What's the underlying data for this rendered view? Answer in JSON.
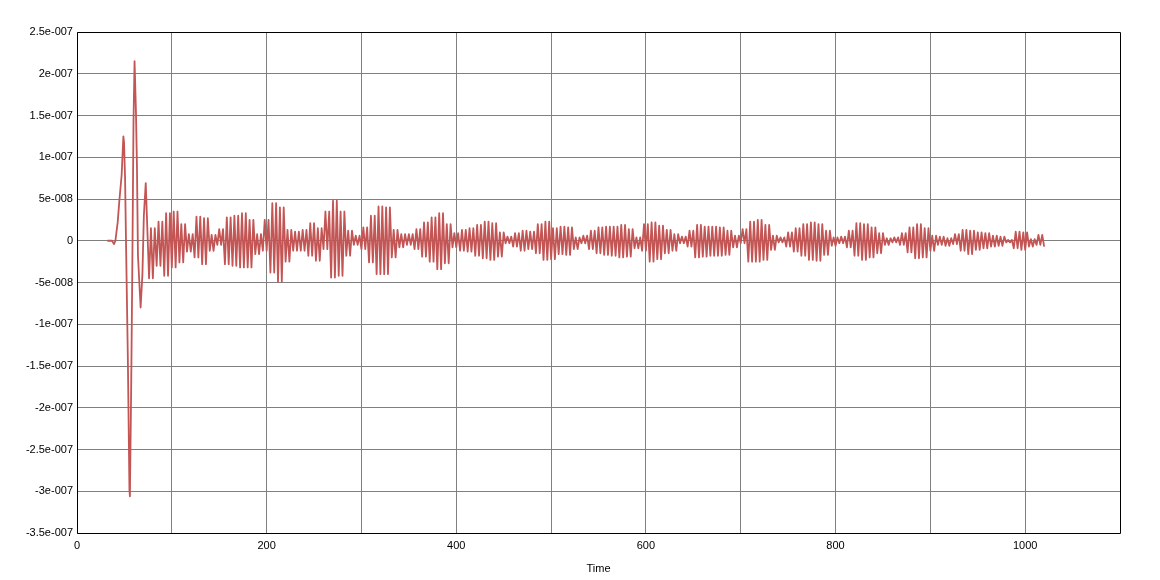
{
  "chart_data": {
    "type": "line",
    "xlabel": "Time",
    "color": "#c45555",
    "xlim": [
      0,
      1100
    ],
    "ylim": [
      -3.5e-07,
      2.5e-07
    ],
    "xticks": [
      0,
      {
        "value": 100,
        "label": null
      },
      200,
      {
        "value": 300,
        "label": null
      },
      400,
      {
        "value": 500,
        "label": null
      },
      600,
      {
        "value": 700,
        "label": null
      },
      800,
      {
        "value": 900,
        "label": null
      },
      1000
    ],
    "yticks": [
      {
        "value": 2.5e-07,
        "label": "2.5e-007"
      },
      {
        "value": 2e-07,
        "label": "2e-007"
      },
      {
        "value": 1.5e-07,
        "label": "1.5e-007"
      },
      {
        "value": 1e-07,
        "label": "1e-007"
      },
      {
        "value": 5e-08,
        "label": "5e-008"
      },
      0,
      {
        "value": -5e-08,
        "label": "-5e-008"
      },
      {
        "value": -1e-07,
        "label": "-1e-007"
      },
      {
        "value": -1.5e-07,
        "label": "-1.5e-007"
      },
      {
        "value": -2e-07,
        "label": "-2e-007"
      },
      {
        "value": -2.5e-07,
        "label": "-2.5e-007"
      },
      {
        "value": -3e-07,
        "label": "-3e-007"
      },
      {
        "value": -3.5e-07,
        "label": "-3.5e-007"
      }
    ],
    "grid": true,
    "x": [
      32,
      37,
      39,
      40.5,
      42.9,
      44.6,
      47.1,
      48.9,
      49.6,
      50.7,
      51.8,
      53.6,
      55.3,
      55.8,
      57.1,
      58.2,
      59.6,
      60.7,
      62.2,
      63.2,
      64.3,
      67.1,
      69,
      70.5,
      72.5,
      76,
      78,
      80,
      82,
      84,
      86,
      88,
      90,
      92,
      94,
      96,
      98,
      100,
      102,
      104,
      106,
      108,
      110,
      112,
      114,
      116,
      118,
      120,
      122,
      124,
      126,
      128,
      130,
      132,
      134,
      136,
      138,
      140,
      142,
      144,
      146,
      148,
      150,
      152,
      154,
      156,
      158,
      160,
      162,
      164,
      166,
      168,
      170,
      172,
      174,
      176,
      178,
      180,
      182,
      184,
      186,
      188,
      190,
      192,
      194,
      196,
      198,
      200,
      202,
      204,
      206,
      208,
      210,
      212,
      214,
      216,
      218,
      220,
      222,
      224,
      226,
      228,
      230,
      232,
      234,
      236,
      238,
      240,
      242,
      244,
      246,
      248,
      250,
      252,
      254,
      256,
      258,
      260,
      262,
      264,
      266,
      268,
      270,
      272,
      274,
      276,
      278,
      280,
      282,
      284,
      286,
      288,
      290,
      292,
      294,
      296,
      298,
      300,
      302,
      304,
      306,
      308,
      310,
      312,
      314,
      316,
      318,
      320,
      322,
      324,
      326,
      328,
      330,
      332,
      334,
      336,
      338,
      340,
      342,
      344,
      346,
      348,
      350,
      352,
      354,
      356,
      358,
      360,
      362,
      364,
      366,
      368,
      370,
      372,
      374,
      376,
      378,
      380,
      382,
      384,
      386,
      388,
      390,
      392,
      394,
      396,
      398,
      400,
      402,
      404,
      406,
      408,
      410,
      412,
      414,
      416,
      418,
      420,
      422,
      424,
      426,
      428,
      430,
      432,
      434,
      436,
      438,
      440,
      442,
      444,
      446,
      448,
      450,
      452,
      454,
      456,
      458,
      460,
      462,
      464,
      466,
      468,
      470,
      472,
      474,
      476,
      478,
      480,
      482,
      484,
      486,
      488,
      490,
      492,
      494,
      496,
      498,
      500,
      502,
      504,
      506,
      508,
      510,
      512,
      514,
      516,
      518,
      520,
      522,
      524,
      526,
      528,
      530,
      532,
      534,
      536,
      538,
      540,
      542,
      544,
      546,
      548,
      550,
      552,
      554,
      556,
      558,
      560,
      562,
      564,
      566,
      568,
      570,
      572,
      574,
      576,
      578,
      580,
      582,
      584,
      586,
      588,
      590,
      592,
      594,
      596,
      598,
      600,
      602,
      604,
      606,
      608,
      610,
      612,
      614,
      616,
      618,
      620,
      622,
      624,
      626,
      628,
      630,
      632,
      634,
      636,
      638,
      640,
      642,
      644,
      646,
      648,
      650,
      652,
      654,
      656,
      658,
      660,
      662,
      664,
      666,
      668,
      670,
      672,
      674,
      676,
      678,
      680,
      682,
      684,
      686,
      688,
      690,
      692,
      694,
      696,
      698,
      700,
      702,
      704,
      706,
      708,
      710,
      712,
      714,
      716,
      718,
      720,
      722,
      724,
      726,
      728,
      730,
      732,
      734,
      736,
      738,
      740,
      742,
      744,
      746,
      748,
      750,
      752,
      754,
      756,
      758,
      760,
      762,
      764,
      766,
      768,
      770,
      772,
      774,
      776,
      778,
      780,
      782,
      784,
      786,
      788,
      790,
      792,
      794,
      796,
      798,
      800,
      802,
      804,
      806,
      808,
      810,
      812,
      814,
      816,
      818,
      820,
      822,
      824,
      826,
      828,
      830,
      832,
      834,
      836,
      838,
      840,
      842,
      844,
      846,
      848,
      850,
      852,
      854,
      856,
      858,
      860,
      862,
      864,
      866,
      868,
      870,
      872,
      874,
      876,
      878,
      880,
      882,
      884,
      886,
      888,
      890,
      892,
      894,
      896,
      898,
      900,
      902,
      904,
      906,
      908,
      910,
      912,
      914,
      916,
      918,
      920,
      922,
      924,
      926,
      928,
      930,
      932,
      934,
      936,
      938,
      940,
      942,
      944,
      946,
      948,
      950,
      952,
      954,
      956,
      958,
      960,
      962,
      964,
      966,
      968,
      970,
      972,
      974,
      976,
      978,
      980,
      982,
      984,
      986,
      988,
      990,
      992,
      994,
      996,
      998,
      1000,
      1002,
      1004,
      1006,
      1008,
      1010,
      1012,
      1014,
      1016,
      1018,
      1020
    ],
    "values": [
      0,
      0,
      -4e-09,
      0,
      2.2e-08,
      4.7e-08,
      7.9e-08,
      1.25e-07,
      1.18e-07,
      7.5e-08,
      -1e-08,
      -1.39e-07,
      -2.98e-07,
      -3.06e-07,
      -1.8e-07,
      -5e-08,
      1.44e-07,
      2.15e-07,
      1.53e-07,
      9.2e-08,
      -1.8e-08,
      -8e-08,
      -4e-08,
      3e-08,
      6.9e-08,
      -4.5e-08,
      1.5e-08,
      -4.5e-08,
      1.5e-08,
      -3e-08,
      2.3e-08,
      -3e-08,
      2.3e-08,
      -4.2e-08,
      3.3e-08,
      -4.2e-08,
      3.3e-08,
      -3.2e-08,
      3.5e-08,
      -3.2e-08,
      3.5e-08,
      -2.6e-08,
      2e-08,
      -2.6e-08,
      2e-08,
      -1.3e-08,
      8e-09,
      -1.3e-08,
      8e-09,
      -2e-08,
      2.9e-08,
      -2e-08,
      2.9e-08,
      -2.8e-08,
      2.7e-08,
      -2.8e-08,
      2.7e-08,
      -1.2e-08,
      7e-09,
      -1.2e-08,
      7e-09,
      -5e-09,
      1.4e-08,
      -5e-09,
      1.4e-08,
      -2.8e-08,
      2.8e-08,
      -2.8e-08,
      2.8e-08,
      -3e-08,
      3e-08,
      -3e-08,
      3e-08,
      -3.2e-08,
      3.3e-08,
      -3.2e-08,
      3.3e-08,
      -3.2e-08,
      2.5e-08,
      -3.2e-08,
      2.5e-08,
      -1.6e-08,
      8e-09,
      -1.6e-08,
      8e-09,
      -1.2e-08,
      2.5e-08,
      -1.2e-08,
      2.5e-08,
      -3.8e-08,
      4.5e-08,
      -3.8e-08,
      4.5e-08,
      -4.9e-08,
      4e-08,
      -4.9e-08,
      4e-08,
      -2.5e-08,
      1.3e-08,
      -2.5e-08,
      1.3e-08,
      -1.2e-08,
      1.1e-08,
      -1.2e-08,
      1.1e-08,
      -1.2e-08,
      1.3e-08,
      -1.2e-08,
      1.3e-08,
      -1.8e-08,
      2.1e-08,
      -1.8e-08,
      2.1e-08,
      -2.4e-08,
      1.5e-08,
      -2.4e-08,
      1.5e-08,
      -1e-08,
      3.5e-08,
      -1e-08,
      3.5e-08,
      -4.4e-08,
      4.8e-08,
      -4.4e-08,
      4.8e-08,
      -4.2e-08,
      3.5e-08,
      -4.2e-08,
      3.5e-08,
      -1.8e-08,
      1.2e-08,
      -1.8e-08,
      1.2e-08,
      -5e-09,
      6e-09,
      -5e-09,
      6e-09,
      -1e-08,
      1.6e-08,
      -1e-08,
      1.6e-08,
      -2.6e-08,
      3e-08,
      -2.6e-08,
      3e-08,
      -4e-08,
      4.1e-08,
      -4e-08,
      4.1e-08,
      -4e-08,
      4e-08,
      -4e-08,
      4e-08,
      -2e-08,
      1.3e-08,
      -2e-08,
      1.3e-08,
      -8e-09,
      8e-09,
      -8e-09,
      8e-09,
      -5e-09,
      8e-09,
      -5e-09,
      8e-09,
      -1e-08,
      1.4e-08,
      -1e-08,
      1.4e-08,
      -1.9e-08,
      2.2e-08,
      -1.9e-08,
      2.2e-08,
      -2.5e-08,
      2.8e-08,
      -2.5e-08,
      2.8e-08,
      -3.4e-08,
      3.3e-08,
      -3.4e-08,
      3.3e-08,
      -2.7e-08,
      2e-08,
      -2.7e-08,
      2e-08,
      -8e-09,
      9e-09,
      -8e-09,
      9e-09,
      -1.2e-08,
      1.3e-08,
      -1.2e-08,
      1.3e-08,
      -1.3e-08,
      1.5e-08,
      -1.3e-08,
      1.5e-08,
      -1.8e-08,
      1.9e-08,
      -1.8e-08,
      1.9e-08,
      -2.1e-08,
      2.3e-08,
      -2.1e-08,
      2.3e-08,
      -2.3e-08,
      2.1e-08,
      -2.3e-08,
      2.1e-08,
      -1.9e-08,
      1e-08,
      -1.9e-08,
      1e-08,
      -3e-09,
      5e-09,
      -3e-09,
      5e-09,
      -7e-09,
      9e-09,
      -7e-09,
      9e-09,
      -1.2e-08,
      1.2e-08,
      -1.2e-08,
      1.2e-08,
      -1e-08,
      1.1e-08,
      -1e-08,
      1.1e-08,
      -1.5e-08,
      2e-08,
      -1.5e-08,
      2e-08,
      -2.3e-08,
      2.3e-08,
      -2.3e-08,
      2.3e-08,
      -2.2e-08,
      1.5e-08,
      -2.2e-08,
      1.5e-08,
      -1.6e-08,
      1.7e-08,
      -1.6e-08,
      1.7e-08,
      -1.7e-08,
      1.6e-08,
      -1.7e-08,
      1.6e-08,
      -1e-08,
      4e-09,
      -1e-08,
      4e-09,
      -3e-09,
      6e-09,
      -3e-09,
      6e-09,
      -1e-08,
      1.2e-08,
      -1e-08,
      1.2e-08,
      -1.5e-08,
      1.6e-08,
      -1.5e-08,
      1.6e-08,
      -1.7e-08,
      1.7e-08,
      -1.7e-08,
      1.7e-08,
      -1.8e-08,
      1.7e-08,
      -1.8e-08,
      1.7e-08,
      -2e-08,
      1.9e-08,
      -2e-08,
      1.9e-08,
      -1.9e-08,
      1.4e-08,
      -1.9e-08,
      1.4e-08,
      -9e-09,
      4e-09,
      -9e-09,
      4e-09,
      -1.2e-08,
      2e-08,
      -1.2e-08,
      2e-08,
      -2.5e-08,
      2.2e-08,
      -2.5e-08,
      2.2e-08,
      -2.2e-08,
      1.8e-08,
      -2.2e-08,
      1.8e-08,
      -1.5e-08,
      1.3e-08,
      -1.5e-08,
      1.3e-08,
      -1.2e-08,
      8e-09,
      -1.2e-08,
      8e-09,
      -3e-09,
      5e-09,
      -3e-09,
      5e-09,
      -7e-09,
      1.2e-08,
      -7e-09,
      1.2e-08,
      -2e-08,
      1.9e-08,
      -2e-08,
      1.9e-08,
      -1.9e-08,
      1.7e-08,
      -1.9e-08,
      1.7e-08,
      -1.8e-08,
      1.7e-08,
      -1.8e-08,
      1.7e-08,
      -1.8e-08,
      1.6e-08,
      -1.8e-08,
      1.6e-08,
      -1.7e-08,
      1.2e-08,
      -1.7e-08,
      1.2e-08,
      -8e-09,
      6e-09,
      -8e-09,
      6e-09,
      -3e-09,
      1.4e-08,
      -3e-09,
      1.4e-08,
      -2.5e-08,
      2.3e-08,
      -2.5e-08,
      2.3e-08,
      -2.5e-08,
      2.5e-08,
      -2.5e-08,
      2.5e-08,
      -2.3e-08,
      1.9e-08,
      -2.3e-08,
      1.9e-08,
      -1.1e-08,
      6e-09,
      -1.1e-08,
      6e-09,
      -2e-09,
      4e-09,
      -2e-09,
      4e-09,
      -7e-09,
      1e-08,
      -7e-09,
      1e-08,
      -1.3e-08,
      1.5e-08,
      -1.3e-08,
      1.5e-08,
      -1.8e-08,
      2e-08,
      -1.8e-08,
      2e-08,
      -2.3e-08,
      2.2e-08,
      -2.3e-08,
      2.2e-08,
      -2.4e-08,
      2e-08,
      -2.4e-08,
      2e-08,
      -1.7e-08,
      1.2e-08,
      -1.7e-08,
      1.2e-08,
      -6e-09,
      4e-09,
      -6e-09,
      4e-09,
      -3e-09,
      5e-09,
      -3e-09,
      5e-09,
      -8e-09,
      1.2e-08,
      -8e-09,
      1.2e-08,
      -1.8e-08,
      2.1e-08,
      -1.8e-08,
      2.1e-08,
      -2.3e-08,
      2e-08,
      -2.3e-08,
      2e-08,
      -2e-08,
      1.6e-08,
      -2e-08,
      1.6e-08,
      -1.5e-08,
      9e-09,
      -1.5e-08,
      9e-09,
      -5e-09,
      3e-09,
      -5e-09,
      3e-09,
      -2e-09,
      4e-09,
      -2e-09,
      4e-09,
      -5e-09,
      9e-09,
      -5e-09,
      9e-09,
      -1.4e-08,
      1.6e-08,
      -1.4e-08,
      1.6e-08,
      -2.1e-08,
      2e-08,
      -2.1e-08,
      2e-08,
      -2e-08,
      1.5e-08,
      -2e-08,
      1.5e-08,
      -1.2e-08,
      6e-09,
      -1.2e-08,
      6e-09,
      -5e-09,
      5e-09,
      -5e-09,
      5e-09,
      -6e-09,
      3e-09,
      -6e-09,
      3e-09,
      -4e-09,
      8e-09,
      -4e-09,
      8e-09,
      -1.2e-08,
      1.3e-08,
      -1.2e-08,
      1.3e-08,
      -1.6e-08,
      1.2e-08,
      -1.6e-08,
      1.2e-08,
      -1.1e-08,
      1e-08,
      -1.1e-08,
      1e-08,
      -9e-09,
      9e-09,
      -9e-09,
      9e-09,
      -7e-09,
      6e-09,
      -7e-09,
      6e-09,
      -6e-09,
      5e-09,
      -6e-09,
      5e-09,
      -2e-09,
      1e-09,
      -2e-09,
      1e-09,
      -9e-09,
      1.1e-08,
      -9e-09,
      1.1e-08,
      -1.1e-08,
      1e-08,
      -1.1e-08,
      1e-08,
      -7e-09,
      2e-09,
      -7e-09,
      2e-09,
      -5e-09,
      7e-09,
      -5e-09,
      7e-09,
      -7e-09
    ]
  }
}
